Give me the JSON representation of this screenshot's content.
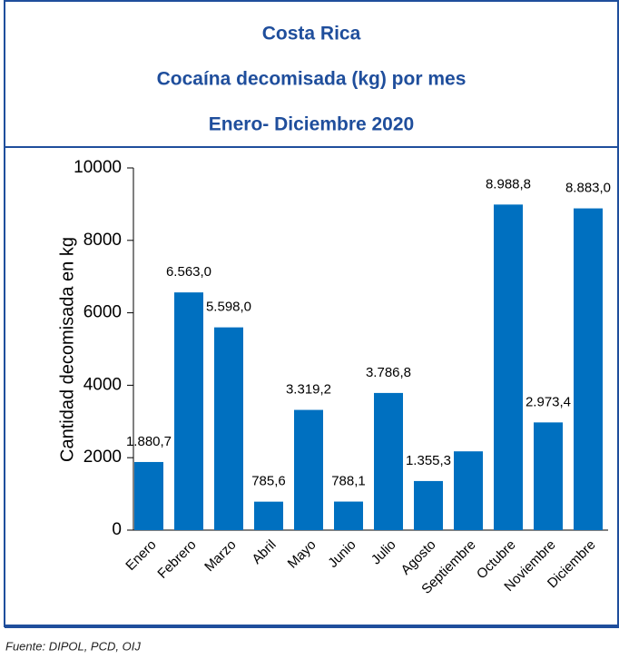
{
  "chart_data": {
    "type": "bar",
    "title": "Costa Rica",
    "subtitle": "Cocaína decomisada (kg) por mes",
    "period": "Enero- Diciembre 2020",
    "y_label": "Cantidad decomisada en kg",
    "source": "Fuente: DIPOL, PCD, OIJ",
    "categories": [
      "Enero",
      "Febrero",
      "Marzo",
      "Abril",
      "Mayo",
      "Junio",
      "Julio",
      "Agosto",
      "Septiembre",
      "Octubre",
      "Noviembre",
      "Diciembre"
    ],
    "values": [
      1880.7,
      6563.0,
      5598.0,
      785.6,
      3319.2,
      788.1,
      3786.8,
      1355.3,
      2175,
      8988.8,
      2973.4,
      8883.0
    ],
    "value_labels": [
      "1.880,7",
      "6.563,0",
      "5.598,0",
      "785,6",
      "3.319,2",
      "788,1",
      "3.786,8",
      "1.355,3",
      null,
      "8.988,8",
      "2.973,4",
      "8.883,0"
    ],
    "color": "#0070c0",
    "ylim": [
      0,
      10000
    ],
    "yticks": [
      0,
      2000,
      4000,
      6000,
      8000,
      10000
    ],
    "grid": false
  }
}
